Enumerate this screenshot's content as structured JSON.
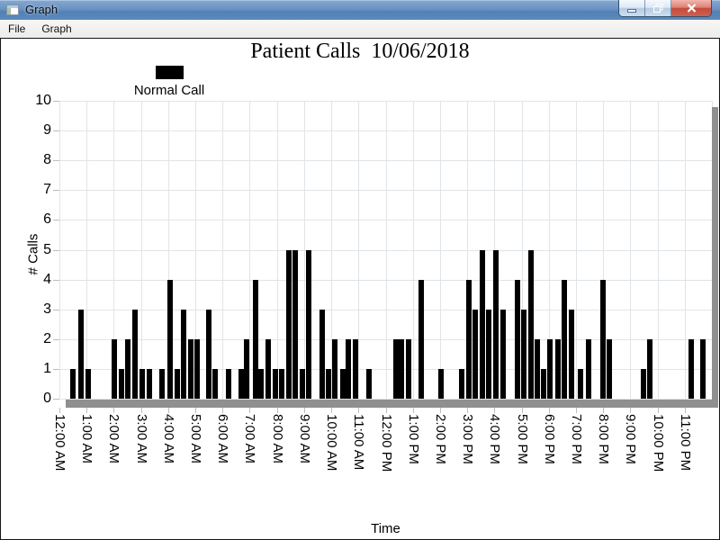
{
  "window": {
    "title": "Graph",
    "menu": [
      {
        "label": "File"
      },
      {
        "label": "Graph"
      }
    ],
    "controls": [
      "minimize",
      "restore-down",
      "close"
    ],
    "accent_color": "#5d89bb"
  },
  "chart_data": {
    "type": "bar",
    "title": "Patient Calls  10/06/2018",
    "legend": [
      {
        "label": "Normal Call",
        "color": "#000000"
      }
    ],
    "xlabel": "Time",
    "ylabel": "# Calls",
    "ylim": [
      0,
      10
    ],
    "y_ticks": [
      0,
      1,
      2,
      3,
      4,
      5,
      6,
      7,
      8,
      9,
      10
    ],
    "x_tick_labels": [
      "12:00 AM",
      "1:00 AM",
      "2:00 AM",
      "3:00 AM",
      "4:00 AM",
      "5:00 AM",
      "6:00 AM",
      "7:00 AM",
      "8:00 AM",
      "9:00 AM",
      "10:00 AM",
      "11:00 AM",
      "12:00 PM",
      "1:00 PM",
      "2:00 PM",
      "3:00 PM",
      "4:00 PM",
      "5:00 PM",
      "6:00 PM",
      "7:00 PM",
      "8:00 PM",
      "9:00 PM",
      "10:00 PM",
      "11:00 PM"
    ],
    "x_range_minutes": [
      0,
      1440
    ],
    "grid": true,
    "bar_color": "#000000",
    "bars_minutes_value": [
      [
        30,
        1
      ],
      [
        48,
        3
      ],
      [
        63,
        1
      ],
      [
        121,
        2
      ],
      [
        137,
        1
      ],
      [
        151,
        2
      ],
      [
        167,
        3
      ],
      [
        182,
        1
      ],
      [
        198,
        1
      ],
      [
        226,
        1
      ],
      [
        244,
        4
      ],
      [
        260,
        1
      ],
      [
        274,
        3
      ],
      [
        290,
        2
      ],
      [
        303,
        2
      ],
      [
        329,
        3
      ],
      [
        343,
        1
      ],
      [
        373,
        1
      ],
      [
        401,
        1
      ],
      [
        414,
        2
      ],
      [
        432,
        4
      ],
      [
        444,
        1
      ],
      [
        460,
        2
      ],
      [
        476,
        1
      ],
      [
        490,
        1
      ],
      [
        506,
        5
      ],
      [
        521,
        5
      ],
      [
        537,
        1
      ],
      [
        551,
        5
      ],
      [
        579,
        3
      ],
      [
        593,
        1
      ],
      [
        607,
        2
      ],
      [
        625,
        1
      ],
      [
        638,
        2
      ],
      [
        654,
        2
      ],
      [
        684,
        1
      ],
      [
        742,
        2
      ],
      [
        755,
        2
      ],
      [
        771,
        2
      ],
      [
        799,
        4
      ],
      [
        843,
        1
      ],
      [
        888,
        1
      ],
      [
        904,
        4
      ],
      [
        918,
        3
      ],
      [
        934,
        5
      ],
      [
        948,
        3
      ],
      [
        964,
        5
      ],
      [
        979,
        3
      ],
      [
        1011,
        4
      ],
      [
        1025,
        3
      ],
      [
        1041,
        5
      ],
      [
        1055,
        2
      ],
      [
        1069,
        1
      ],
      [
        1082,
        2
      ],
      [
        1100,
        2
      ],
      [
        1114,
        4
      ],
      [
        1130,
        3
      ],
      [
        1150,
        1
      ],
      [
        1168,
        2
      ],
      [
        1200,
        4
      ],
      [
        1213,
        2
      ],
      [
        1289,
        1
      ],
      [
        1303,
        2
      ],
      [
        1394,
        2
      ],
      [
        1420,
        2
      ]
    ]
  }
}
